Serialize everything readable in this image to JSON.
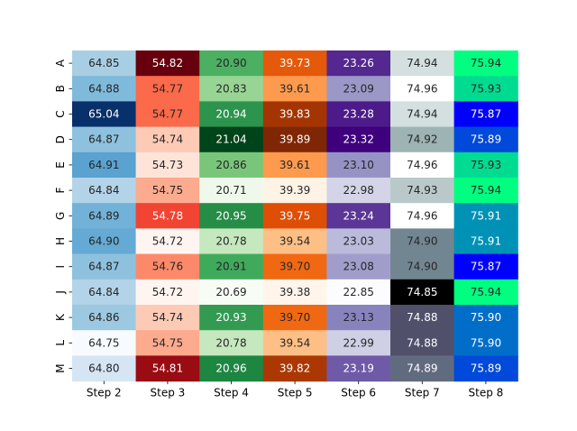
{
  "chart_data": {
    "type": "heatmap",
    "title": "",
    "xlabel": "",
    "ylabel": "",
    "columns": [
      "Step 2",
      "Step 3",
      "Step 4",
      "Step 5",
      "Step 6",
      "Step 7",
      "Step 8"
    ],
    "rows": [
      "A",
      "B",
      "C",
      "D",
      "E",
      "F",
      "G",
      "H",
      "I",
      "J",
      "K",
      "L",
      "M"
    ],
    "column_colormaps": [
      "Blues",
      "Reds",
      "Greens",
      "Oranges",
      "Purples",
      "bone",
      "winter"
    ],
    "values": [
      [
        64.85,
        54.82,
        20.9,
        39.73,
        23.26,
        74.94,
        75.94
      ],
      [
        64.88,
        54.77,
        20.83,
        39.61,
        23.09,
        74.96,
        75.93
      ],
      [
        65.04,
        54.77,
        20.94,
        39.83,
        23.28,
        74.94,
        75.87
      ],
      [
        64.87,
        54.74,
        21.04,
        39.89,
        23.32,
        74.92,
        75.89
      ],
      [
        64.91,
        54.73,
        20.86,
        39.61,
        23.1,
        74.96,
        75.93
      ],
      [
        64.84,
        54.75,
        20.71,
        39.39,
        22.98,
        74.93,
        75.94
      ],
      [
        64.89,
        54.78,
        20.95,
        39.75,
        23.24,
        74.96,
        75.91
      ],
      [
        64.9,
        54.72,
        20.78,
        39.54,
        23.03,
        74.9,
        75.91
      ],
      [
        64.87,
        54.76,
        20.91,
        39.7,
        23.08,
        74.9,
        75.87
      ],
      [
        64.84,
        54.72,
        20.69,
        39.38,
        22.85,
        74.85,
        75.94
      ],
      [
        64.86,
        54.74,
        20.93,
        39.7,
        23.13,
        74.88,
        75.9
      ],
      [
        64.75,
        54.75,
        20.78,
        39.54,
        22.99,
        74.88,
        75.9
      ],
      [
        64.8,
        54.81,
        20.96,
        39.82,
        23.19,
        74.89,
        75.89
      ]
    ]
  }
}
